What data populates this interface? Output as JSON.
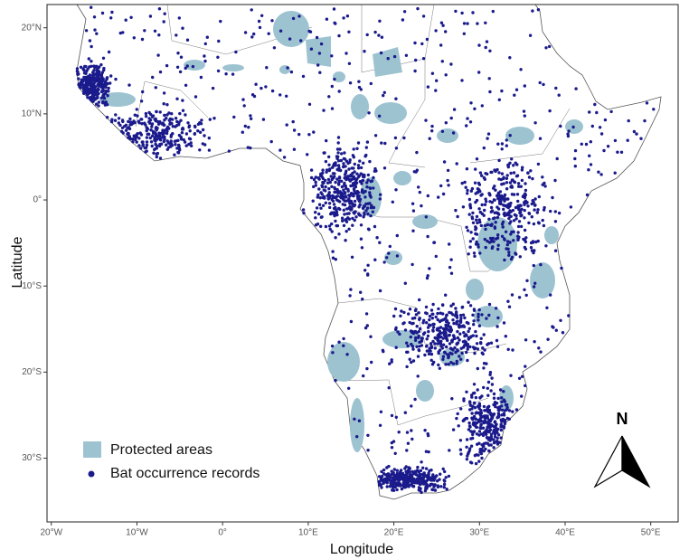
{
  "map": {
    "x_axis": {
      "title": "Longitude",
      "range": [
        -20.5,
        53.2
      ],
      "ticks": [
        {
          "value": -20,
          "label": "20°W"
        },
        {
          "value": -10,
          "label": "10°W"
        },
        {
          "value": 0,
          "label": "0°"
        },
        {
          "value": 10,
          "label": "10°E"
        },
        {
          "value": 20,
          "label": "20°E"
        },
        {
          "value": 30,
          "label": "30°E"
        },
        {
          "value": 40,
          "label": "40°E"
        },
        {
          "value": 50,
          "label": "50°E"
        }
      ]
    },
    "y_axis": {
      "title": "Latitude",
      "range": [
        -37.4,
        22.7
      ],
      "ticks": [
        {
          "value": 20,
          "label": "20°N"
        },
        {
          "value": 10,
          "label": "10°N"
        },
        {
          "value": 0,
          "label": "0°"
        },
        {
          "value": -10,
          "label": "10°S"
        },
        {
          "value": -20,
          "label": "20°S"
        },
        {
          "value": -30,
          "label": "30°S"
        }
      ]
    },
    "legend": [
      {
        "name": "Protected areas",
        "color": "#9dc3d1"
      },
      {
        "name": "Bat occurrence records",
        "color": "#1a1a8c"
      }
    ],
    "north_arrow": "N"
  }
}
